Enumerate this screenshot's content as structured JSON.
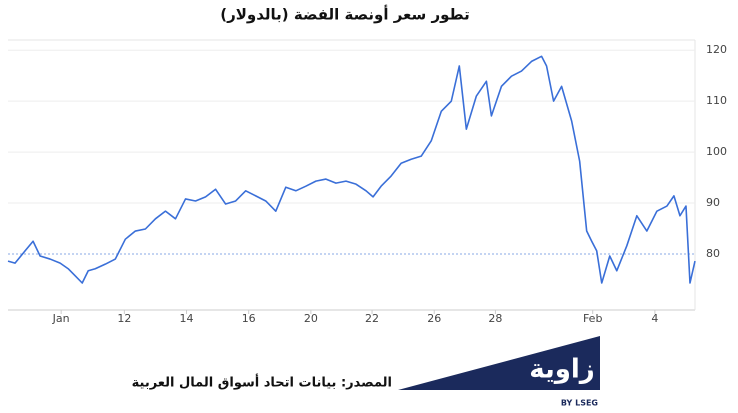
{
  "chart_data": {
    "type": "line",
    "title": "تطور سعر أونصة الفضة (بالدولار)",
    "source": "المصدر: بيانات اتحاد أسواق المال العربية",
    "logo": {
      "name": "زاوية",
      "byline": "BY LSEG"
    },
    "xlim": [
      0,
      685
    ],
    "xticks": [
      {
        "value": 53,
        "label": "Jan"
      },
      {
        "value": 116,
        "label": "12"
      },
      {
        "value": 178,
        "label": "14"
      },
      {
        "value": 240,
        "label": "16"
      },
      {
        "value": 302,
        "label": "20"
      },
      {
        "value": 363,
        "label": "22"
      },
      {
        "value": 425,
        "label": "26"
      },
      {
        "value": 486,
        "label": "28"
      },
      {
        "value": 583,
        "label": "Feb"
      },
      {
        "value": 645,
        "label": "4"
      }
    ],
    "ylim": [
      69,
      122
    ],
    "yticks": [
      90,
      100,
      110,
      120
    ],
    "reference_line": 80,
    "grid": true,
    "series": [
      {
        "color": "#3a6fd8",
        "x": [
          0,
          7,
          17,
          25,
          32,
          42,
          52,
          60,
          67,
          74,
          80,
          87,
          97,
          107,
          117,
          127,
          137,
          147,
          157,
          167,
          177,
          187,
          197,
          207,
          217,
          227,
          237,
          247,
          257,
          267,
          277,
          287,
          297,
          307,
          317,
          327,
          337,
          347,
          357,
          364,
          372,
          382,
          392,
          402,
          412,
          422,
          432,
          442,
          450,
          457,
          467,
          477,
          482,
          492,
          502,
          512,
          522,
          532,
          537,
          544,
          552,
          562,
          570,
          577,
          582,
          587,
          592,
          600,
          607,
          617,
          627,
          637,
          647,
          657,
          664,
          670,
          676,
          680,
          685
        ],
        "values": [
          78.6,
          78.2,
          80.6,
          82.5,
          79.6,
          79.0,
          78.2,
          77.1,
          75.7,
          74.3,
          76.7,
          77.1,
          78.0,
          79.0,
          82.9,
          84.5,
          84.9,
          86.9,
          88.4,
          86.9,
          90.8,
          90.4,
          91.2,
          92.7,
          89.8,
          90.4,
          92.4,
          91.4,
          90.4,
          88.4,
          93.1,
          92.4,
          93.3,
          94.3,
          94.7,
          93.9,
          94.3,
          93.7,
          92.4,
          91.2,
          93.3,
          95.3,
          97.8,
          98.6,
          99.2,
          102.2,
          108.0,
          110.0,
          116.9,
          104.5,
          111.0,
          113.9,
          107.1,
          112.9,
          114.9,
          115.9,
          117.8,
          118.8,
          116.9,
          110.0,
          112.9,
          106.1,
          98.2,
          84.5,
          82.5,
          80.6,
          74.3,
          79.6,
          76.7,
          81.6,
          87.5,
          84.5,
          88.4,
          89.4,
          91.4,
          87.5,
          89.4,
          74.3,
          78.6
        ]
      }
    ]
  }
}
